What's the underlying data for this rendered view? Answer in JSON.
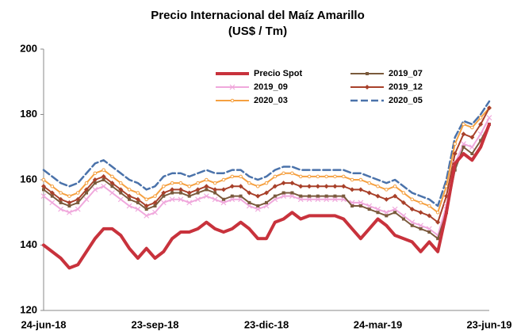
{
  "chart_data": {
    "type": "line",
    "title": "Precio Internacional del Maíz Amarillo",
    "subtitle": "(US$ / Tm)",
    "categories": [
      "24-jun-18",
      null,
      null,
      null,
      null,
      null,
      null,
      null,
      null,
      null,
      null,
      null,
      null,
      "23-sep-18",
      null,
      null,
      null,
      null,
      null,
      null,
      null,
      null,
      null,
      null,
      null,
      null,
      "23-dic-18",
      null,
      null,
      null,
      null,
      null,
      null,
      null,
      null,
      null,
      null,
      null,
      null,
      "24-mar-19",
      null,
      null,
      null,
      null,
      null,
      null,
      null,
      null,
      null,
      null,
      null,
      null,
      "23-jun-19"
    ],
    "ylim": [
      120,
      200
    ],
    "yticks": [
      120,
      140,
      160,
      180,
      200
    ],
    "grid": false,
    "legend": "top",
    "series": [
      {
        "name": "Precio Spot",
        "color": "#c8323c",
        "width": 4,
        "marker": "none",
        "dash": false,
        "values": [
          140,
          138,
          136,
          133,
          134,
          138,
          142,
          145,
          145,
          143,
          139,
          136,
          139,
          136,
          138,
          142,
          144,
          144,
          145,
          147,
          145,
          144,
          145,
          147,
          145,
          142,
          142,
          147,
          148,
          150,
          148,
          149,
          149,
          149,
          149,
          148,
          145,
          142,
          145,
          148,
          146,
          143,
          142,
          141,
          138,
          141,
          138,
          150,
          165,
          168,
          166,
          170,
          177
        ]
      },
      {
        "name": "2019_07",
        "color": "#7a5a3c",
        "width": 2,
        "marker": "square",
        "dash": false,
        "values": [
          157,
          155,
          153,
          152,
          153,
          156,
          159,
          160,
          158,
          156,
          154,
          153,
          151,
          152,
          155,
          156,
          156,
          155,
          156,
          157,
          156,
          154,
          155,
          155,
          153,
          152,
          153,
          155,
          156,
          156,
          155,
          155,
          155,
          155,
          155,
          155,
          152,
          152,
          151,
          150,
          149,
          150,
          148,
          146,
          145,
          144,
          142,
          150,
          163,
          170,
          168,
          172,
          177
        ]
      },
      {
        "name": "2019_09",
        "color": "#f0a8dc",
        "width": 2,
        "marker": "cross",
        "dash": false,
        "values": [
          155,
          153,
          151,
          150,
          151,
          154,
          157,
          158,
          156,
          154,
          152,
          151,
          149,
          150,
          153,
          154,
          154,
          153,
          154,
          155,
          154,
          153,
          154,
          154,
          152,
          151,
          152,
          154,
          155,
          155,
          154,
          154,
          154,
          154,
          154,
          154,
          153,
          153,
          152,
          151,
          150,
          151,
          149,
          147,
          146,
          145,
          143,
          152,
          165,
          171,
          170,
          174,
          179
        ]
      },
      {
        "name": "2019_12",
        "color": "#a8402a",
        "width": 2,
        "marker": "diamond",
        "dash": false,
        "values": [
          158,
          156,
          154,
          153,
          154,
          157,
          160,
          161,
          159,
          157,
          155,
          154,
          152,
          153,
          156,
          157,
          157,
          156,
          157,
          158,
          157,
          157,
          158,
          158,
          156,
          155,
          156,
          158,
          159,
          159,
          158,
          158,
          158,
          158,
          158,
          158,
          157,
          157,
          156,
          155,
          154,
          155,
          153,
          151,
          150,
          149,
          147,
          155,
          168,
          174,
          173,
          177,
          182
        ]
      },
      {
        "name": "2020_03",
        "color": "#f5a040",
        "width": 2,
        "marker": "dot",
        "dash": false,
        "values": [
          160,
          158,
          156,
          155,
          156,
          159,
          162,
          163,
          161,
          159,
          157,
          156,
          154,
          155,
          158,
          159,
          159,
          158,
          159,
          160,
          159,
          160,
          161,
          161,
          159,
          158,
          159,
          161,
          162,
          162,
          161,
          161,
          161,
          161,
          161,
          161,
          160,
          160,
          159,
          158,
          157,
          158,
          156,
          154,
          153,
          152,
          150,
          158,
          171,
          177,
          176,
          179,
          182
        ]
      },
      {
        "name": "2020_05",
        "color": "#4a72aa",
        "width": 2.5,
        "marker": "none",
        "dash": true,
        "values": [
          163,
          161,
          159,
          158,
          159,
          162,
          165,
          166,
          164,
          162,
          160,
          159,
          157,
          158,
          161,
          162,
          162,
          161,
          162,
          163,
          162,
          162,
          163,
          163,
          161,
          160,
          161,
          163,
          164,
          164,
          163,
          163,
          163,
          163,
          163,
          163,
          162,
          162,
          161,
          160,
          159,
          160,
          158,
          156,
          155,
          154,
          152,
          160,
          173,
          178,
          177,
          180,
          184
        ]
      }
    ]
  }
}
